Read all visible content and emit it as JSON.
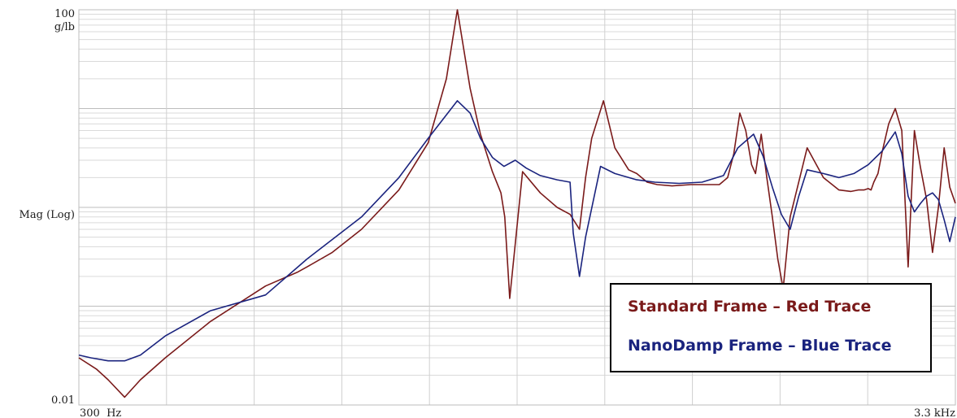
{
  "chart_data": {
    "type": "line",
    "title": "",
    "ylabel": "Mag (Log)",
    "yunit": "g/lb",
    "xlabel": "",
    "yscale": "log",
    "ylim": [
      0.01,
      100
    ],
    "xscale": "log",
    "xlim": [
      300,
      3300
    ],
    "x_tick_labels": {
      "start": "300  Hz",
      "end": "3.3 kHz"
    },
    "y_tick_labels": {
      "top": "100",
      "bottom": "0.01"
    },
    "grid": true,
    "legend": {
      "placement": "bottom-right",
      "boxed": true
    },
    "series": [
      {
        "name": "Standard Frame – Red Trace",
        "color": "#7a1a1a",
        "x": [
          300,
          315,
          325,
          340,
          355,
          380,
          430,
          500,
          545,
          560,
          600,
          650,
          720,
          780,
          820,
          845,
          875,
          900,
          930,
          952,
          962,
          975,
          1010,
          1060,
          1110,
          1150,
          1180,
          1200,
          1220,
          1260,
          1300,
          1350,
          1380,
          1420,
          1460,
          1520,
          1600,
          1670,
          1730,
          1770,
          1800,
          1830,
          1860,
          1890,
          1910,
          1940,
          1970,
          2000,
          2030,
          2060,
          2100,
          2200,
          2300,
          2400,
          2480,
          2530,
          2570,
          2600,
          2620,
          2640,
          2670,
          2700,
          2750,
          2800,
          2850,
          2900,
          2950,
          3000,
          3050,
          3100,
          3150,
          3200,
          3250,
          3300
        ],
        "y": [
          0.03,
          0.023,
          0.018,
          0.012,
          0.018,
          0.03,
          0.07,
          0.16,
          0.22,
          0.25,
          0.35,
          0.6,
          1.5,
          4.5,
          20,
          100,
          16,
          5.5,
          2.3,
          1.4,
          0.8,
          0.12,
          2.3,
          1.4,
          1.0,
          0.85,
          0.6,
          2.0,
          5.0,
          12.0,
          4.0,
          2.4,
          2.2,
          1.8,
          1.7,
          1.65,
          1.7,
          1.7,
          1.7,
          2.0,
          3.5,
          9.0,
          6.0,
          2.7,
          2.2,
          5.5,
          2.0,
          0.8,
          0.3,
          0.15,
          0.8,
          4.0,
          2.0,
          1.5,
          1.45,
          1.5,
          1.5,
          1.55,
          1.5,
          1.8,
          2.2,
          3.6,
          7.0,
          10.0,
          6.0,
          0.25,
          6.0,
          2.5,
          1.2,
          0.35,
          1.0,
          4.0,
          1.6,
          1.1
        ]
      },
      {
        "name": "NanoDamp Frame – Blue Trace",
        "color": "#1a237e",
        "x": [
          300,
          310,
          325,
          340,
          355,
          380,
          430,
          500,
          560,
          650,
          720,
          780,
          845,
          875,
          900,
          930,
          960,
          990,
          1020,
          1060,
          1110,
          1150,
          1160,
          1180,
          1200,
          1250,
          1300,
          1380,
          1450,
          1550,
          1650,
          1750,
          1820,
          1900,
          1950,
          2000,
          2050,
          2100,
          2150,
          2200,
          2300,
          2400,
          2500,
          2600,
          2700,
          2800,
          2850,
          2900,
          2950,
          3000,
          3050,
          3100,
          3150,
          3200,
          3250,
          3300
        ],
        "y": [
          0.032,
          0.03,
          0.028,
          0.028,
          0.032,
          0.05,
          0.09,
          0.13,
          0.3,
          0.8,
          2.0,
          5.0,
          12.0,
          9.0,
          5.0,
          3.2,
          2.6,
          3.0,
          2.5,
          2.1,
          1.9,
          1.8,
          0.55,
          0.2,
          0.5,
          2.6,
          2.2,
          1.9,
          1.8,
          1.75,
          1.8,
          2.1,
          4.0,
          5.5,
          3.3,
          1.6,
          0.85,
          0.6,
          1.3,
          2.4,
          2.2,
          2.0,
          2.2,
          2.7,
          3.7,
          5.8,
          3.5,
          1.3,
          0.9,
          1.1,
          1.3,
          1.4,
          1.2,
          0.75,
          0.45,
          0.8
        ]
      }
    ]
  }
}
